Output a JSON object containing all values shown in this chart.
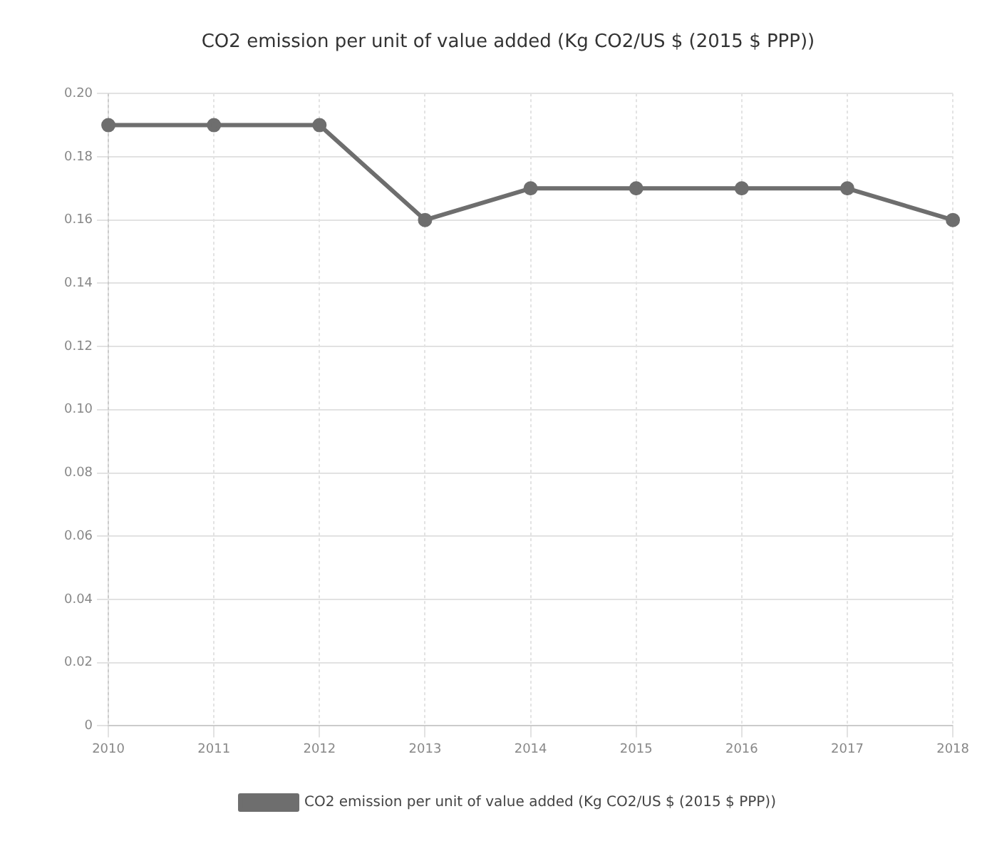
{
  "chart_data": {
    "type": "line",
    "title": "CO2 emission per unit of value added (Kg CO2/US $ (2015 $ PPP))",
    "categories": [
      "2010",
      "2011",
      "2012",
      "2013",
      "2014",
      "2015",
      "2016",
      "2017",
      "2018"
    ],
    "series": [
      {
        "name": "CO2 emission per unit of value added (Kg CO2/US $ (2015 $ PPP))",
        "color": "#6e6e6e",
        "values": [
          0.19,
          0.19,
          0.19,
          0.16,
          0.17,
          0.17,
          0.17,
          0.17,
          0.16
        ]
      }
    ],
    "ylim": [
      0,
      0.2
    ],
    "yticks": [
      0,
      0.02,
      0.04,
      0.06,
      0.08,
      {
        "value": 0.1,
        "label": "0.10"
      },
      0.12,
      0.14,
      0.16,
      0.18,
      {
        "value": 0.2,
        "label": "0.20"
      }
    ],
    "grid": true,
    "legend": "bottom",
    "marker": "circle",
    "line_style": "solid"
  }
}
